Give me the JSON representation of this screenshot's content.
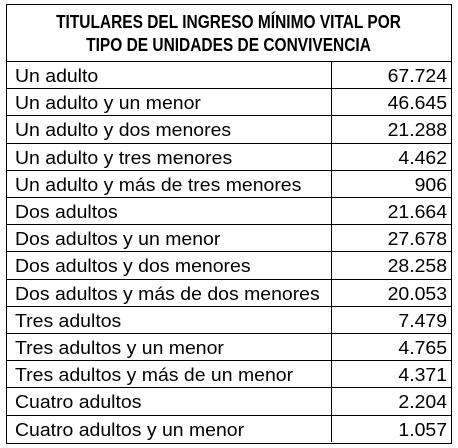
{
  "table": {
    "title_lines": [
      "TITULARES DEL INGRESO MÍNIMO VITAL POR",
      "TIPO DE UNIDADES DE CONVIVENCIA"
    ],
    "rows": [
      [
        "Un adulto",
        "67.724"
      ],
      [
        "Un adulto y un menor",
        "46.645"
      ],
      [
        "Un adulto y dos menores",
        "21.288"
      ],
      [
        "Un adulto y tres menores",
        "4.462"
      ],
      [
        "Un adulto y más de tres menores",
        "906"
      ],
      [
        "Dos adultos",
        "21.664"
      ],
      [
        "Dos adultos y un menor",
        "27.678"
      ],
      [
        "Dos adultos y dos menores",
        "28.258"
      ],
      [
        "Dos adultos y más de dos menores",
        "20.053"
      ],
      [
        "Tres adultos",
        "7.479"
      ],
      [
        "Tres adultos y un menor",
        "4.765"
      ],
      [
        "Tres adultos y más de un menor",
        "4.371"
      ],
      [
        "Cuatro adultos",
        "2.204"
      ],
      [
        "Cuatro adultos y un menor",
        "1.057"
      ]
    ]
  }
}
